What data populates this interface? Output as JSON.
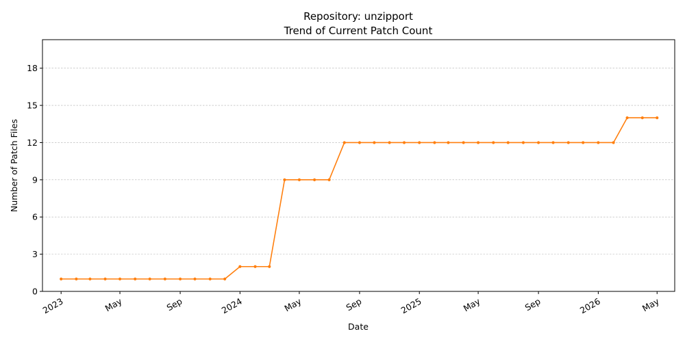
{
  "chart_data": {
    "type": "line",
    "title": "Repository: unzipport",
    "subtitle": "Trend of Current Patch Count",
    "xlabel": "Date",
    "ylabel": "Number of Patch Files",
    "ylim": [
      0,
      20.3
    ],
    "yticks": [
      0,
      3,
      6,
      9,
      12,
      15,
      18
    ],
    "xlim": [
      "2022-11-24",
      "2026-06-06"
    ],
    "xticks": [
      {
        "date": "2023-01-01",
        "label": "2023"
      },
      {
        "date": "2023-05-01",
        "label": "May"
      },
      {
        "date": "2023-09-01",
        "label": "Sep"
      },
      {
        "date": "2024-01-01",
        "label": "2024"
      },
      {
        "date": "2024-05-01",
        "label": "May"
      },
      {
        "date": "2024-09-01",
        "label": "Sep"
      },
      {
        "date": "2025-01-01",
        "label": "2025"
      },
      {
        "date": "2025-05-01",
        "label": "May"
      },
      {
        "date": "2025-09-01",
        "label": "Sep"
      },
      {
        "date": "2026-01-01",
        "label": "2026"
      },
      {
        "date": "2026-05-01",
        "label": "May"
      }
    ],
    "grid": "y-dashed",
    "line_color": "#ff7f0e",
    "series": [
      {
        "x": [
          "2023-01-01",
          "2023-02-01",
          "2023-03-01",
          "2023-04-01",
          "2023-05-01",
          "2023-06-01",
          "2023-07-01",
          "2023-08-01",
          "2023-09-01",
          "2023-10-01",
          "2023-11-01",
          "2023-12-01",
          "2024-01-01",
          "2024-02-01",
          "2024-03-01",
          "2024-04-01",
          "2024-05-01",
          "2024-06-01",
          "2024-07-01",
          "2024-08-01",
          "2024-09-01",
          "2024-10-01",
          "2024-11-01",
          "2024-12-01",
          "2025-01-01",
          "2025-02-01",
          "2025-03-01",
          "2025-04-01",
          "2025-05-01",
          "2025-06-01",
          "2025-07-01",
          "2025-08-01",
          "2025-09-01",
          "2025-10-01",
          "2025-11-01",
          "2025-12-01",
          "2026-01-01",
          "2026-02-01",
          "2026-03-01",
          "2026-04-01",
          "2026-05-01"
        ],
        "values": [
          1,
          1,
          1,
          1,
          1,
          1,
          1,
          1,
          1,
          1,
          1,
          1,
          2,
          2,
          2,
          9,
          9,
          9,
          9,
          12,
          12,
          12,
          12,
          12,
          12,
          12,
          12,
          12,
          12,
          12,
          12,
          12,
          12,
          12,
          12,
          12,
          12,
          12,
          14,
          14,
          14
        ]
      }
    ]
  }
}
